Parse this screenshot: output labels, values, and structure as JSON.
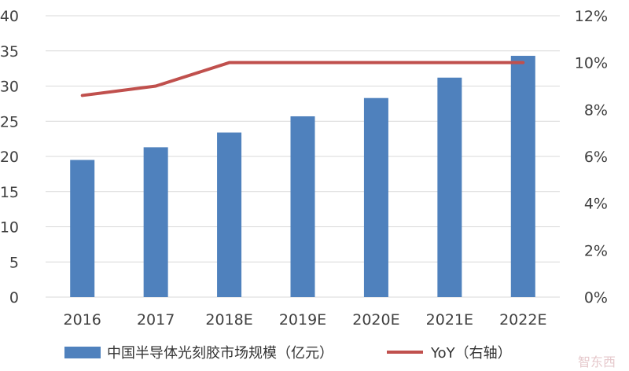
{
  "chart_data": {
    "type": "bar",
    "categories": [
      "2016",
      "2017",
      "2018E",
      "2019E",
      "2020E",
      "2021E",
      "2022E"
    ],
    "series": [
      {
        "name": "中国半导体光刻胶市场规模（亿元）",
        "type": "bar",
        "axis": "left",
        "color": "#4f81bd",
        "values": [
          19.5,
          21.3,
          23.4,
          25.7,
          28.3,
          31.2,
          34.3
        ]
      },
      {
        "name": "YoY（右轴）",
        "type": "line",
        "axis": "right",
        "color": "#c0504d",
        "values": [
          8.6,
          9.0,
          10.0,
          10.0,
          10.0,
          10.0,
          10.0
        ]
      }
    ],
    "y_left": {
      "ylim": [
        0,
        40
      ],
      "ticks": [
        "0",
        "5",
        "10",
        "15",
        "20",
        "25",
        "30",
        "35",
        "40"
      ]
    },
    "y_right": {
      "ylim": [
        0,
        12
      ],
      "ticks": [
        "0%",
        "2%",
        "4%",
        "6%",
        "8%",
        "10%",
        "12%"
      ],
      "unit": "%"
    },
    "grid": true,
    "legend_position": "bottom"
  },
  "watermark": "智东西"
}
